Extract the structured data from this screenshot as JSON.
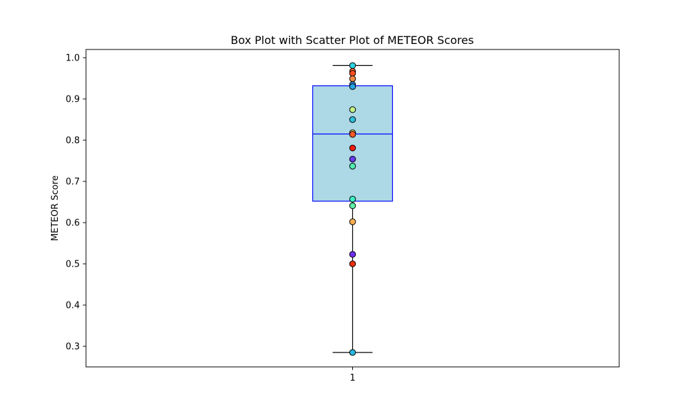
{
  "chart_data": {
    "type": "box",
    "title": "Box Plot with Scatter Plot of METEOR Scores",
    "xlabel": "",
    "ylabel": "METEOR Score",
    "categories": [
      "1"
    ],
    "ylim": [
      0.25,
      1.02
    ],
    "yticks": [
      0.3,
      0.4,
      0.5,
      0.6,
      0.7,
      0.8,
      0.9,
      1.0
    ],
    "ytick_labels": [
      "0.3",
      "0.4",
      "0.5",
      "0.6",
      "0.7",
      "0.8",
      "0.9",
      "1.0"
    ],
    "grid": false,
    "box": {
      "category": "1",
      "whisker_low": 0.285,
      "q1": 0.652,
      "median": 0.815,
      "q3": 0.932,
      "whisker_high": 0.981,
      "face_color": "#add8e6",
      "edge_color": "#0000ff",
      "whisker_color": "#000000"
    },
    "points": [
      {
        "x": "1",
        "y": 0.981,
        "color": "#2dd3e0"
      },
      {
        "x": "1",
        "y": 0.967,
        "color": "#ff6a2f"
      },
      {
        "x": "1",
        "y": 0.962,
        "color": "#ff4e1f"
      },
      {
        "x": "1",
        "y": 0.949,
        "color": "#f08a45"
      },
      {
        "x": "1",
        "y": 0.935,
        "color": "#3a8ff0"
      },
      {
        "x": "1",
        "y": 0.93,
        "color": "#24a6e8"
      },
      {
        "x": "1",
        "y": 0.874,
        "color": "#c2f08a"
      },
      {
        "x": "1",
        "y": 0.85,
        "color": "#2fc3dd"
      },
      {
        "x": "1",
        "y": 0.818,
        "color": "#f0d070"
      },
      {
        "x": "1",
        "y": 0.814,
        "color": "#ff5a2a"
      },
      {
        "x": "1",
        "y": 0.781,
        "color": "#f01e10"
      },
      {
        "x": "1",
        "y": 0.754,
        "color": "#6a3cf0"
      },
      {
        "x": "1",
        "y": 0.737,
        "color": "#50f0b0"
      },
      {
        "x": "1",
        "y": 0.657,
        "color": "#3cf0c8"
      },
      {
        "x": "1",
        "y": 0.641,
        "color": "#60f0a8"
      },
      {
        "x": "1",
        "y": 0.602,
        "color": "#ffb050"
      },
      {
        "x": "1",
        "y": 0.523,
        "color": "#7030f0"
      },
      {
        "x": "1",
        "y": 0.5,
        "color": "#f0300a"
      },
      {
        "x": "1",
        "y": 0.285,
        "color": "#28b8e0"
      }
    ]
  }
}
